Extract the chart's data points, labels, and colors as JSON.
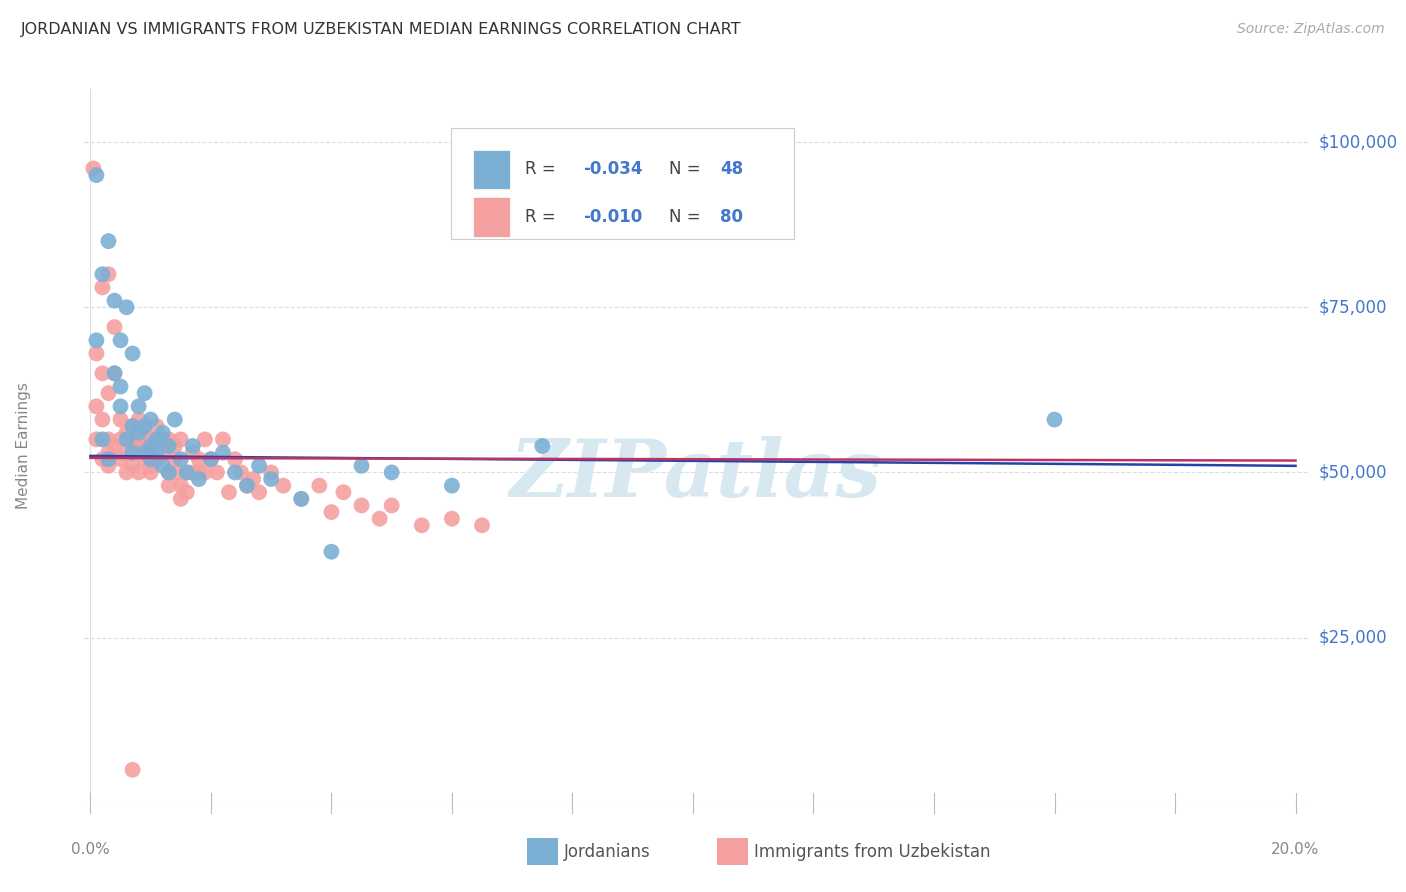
{
  "title": "JORDANIAN VS IMMIGRANTS FROM UZBEKISTAN MEDIAN EARNINGS CORRELATION CHART",
  "source": "Source: ZipAtlas.com",
  "ylabel": "Median Earnings",
  "y_tick_labels": [
    "$25,000",
    "$50,000",
    "$75,000",
    "$100,000"
  ],
  "y_tick_values": [
    25000,
    50000,
    75000,
    100000
  ],
  "r_jordanian": -0.034,
  "n_jordanian": 48,
  "r_uzbekistan": -0.01,
  "n_uzbekistan": 80,
  "blue_color": "#7BAFD4",
  "pink_color": "#F4A0A0",
  "line_color_blue": "#2244AA",
  "line_color_pink": "#BB3366",
  "title_color": "#333333",
  "axis_label_color": "#4477CC",
  "watermark_color": "#D8E8F0",
  "background_color": "#FFFFFF",
  "jordanians_x": [
    0.001,
    0.001,
    0.002,
    0.002,
    0.003,
    0.003,
    0.004,
    0.004,
    0.005,
    0.005,
    0.005,
    0.006,
    0.006,
    0.007,
    0.007,
    0.007,
    0.008,
    0.008,
    0.009,
    0.009,
    0.009,
    0.01,
    0.01,
    0.01,
    0.011,
    0.011,
    0.012,
    0.012,
    0.013,
    0.013,
    0.014,
    0.015,
    0.016,
    0.017,
    0.018,
    0.02,
    0.022,
    0.024,
    0.026,
    0.028,
    0.03,
    0.035,
    0.04,
    0.045,
    0.05,
    0.06,
    0.075,
    0.16
  ],
  "jordanians_y": [
    95000,
    70000,
    80000,
    55000,
    85000,
    52000,
    76000,
    65000,
    70000,
    63000,
    60000,
    75000,
    55000,
    68000,
    57000,
    53000,
    60000,
    56000,
    62000,
    57000,
    53000,
    58000,
    54000,
    52000,
    55000,
    53000,
    56000,
    51000,
    54000,
    50000,
    58000,
    52000,
    50000,
    54000,
    49000,
    52000,
    53000,
    50000,
    48000,
    51000,
    49000,
    46000,
    38000,
    51000,
    50000,
    48000,
    54000,
    58000
  ],
  "uzbekistan_x": [
    0.0005,
    0.001,
    0.001,
    0.001,
    0.002,
    0.002,
    0.002,
    0.003,
    0.003,
    0.003,
    0.004,
    0.004,
    0.004,
    0.005,
    0.005,
    0.005,
    0.006,
    0.006,
    0.006,
    0.007,
    0.007,
    0.007,
    0.008,
    0.008,
    0.008,
    0.008,
    0.009,
    0.009,
    0.009,
    0.01,
    0.01,
    0.01,
    0.01,
    0.011,
    0.011,
    0.011,
    0.012,
    0.012,
    0.013,
    0.013,
    0.013,
    0.014,
    0.014,
    0.014,
    0.015,
    0.015,
    0.015,
    0.016,
    0.016,
    0.017,
    0.017,
    0.018,
    0.018,
    0.019,
    0.019,
    0.02,
    0.021,
    0.022,
    0.023,
    0.024,
    0.025,
    0.026,
    0.027,
    0.028,
    0.03,
    0.032,
    0.035,
    0.038,
    0.04,
    0.042,
    0.045,
    0.048,
    0.05,
    0.055,
    0.06,
    0.065,
    0.003,
    0.002,
    0.003,
    0.007
  ],
  "uzbekistan_y": [
    96000,
    68000,
    60000,
    55000,
    65000,
    58000,
    52000,
    62000,
    55000,
    51000,
    72000,
    65000,
    54000,
    58000,
    55000,
    52000,
    56000,
    53000,
    50000,
    57000,
    54000,
    51000,
    55000,
    58000,
    54000,
    50000,
    55000,
    57000,
    52000,
    55000,
    53000,
    51000,
    50000,
    55000,
    57000,
    52000,
    55000,
    53000,
    55000,
    50000,
    48000,
    54000,
    52000,
    50000,
    55000,
    48000,
    46000,
    50000,
    47000,
    53000,
    50000,
    52000,
    50000,
    55000,
    50000,
    52000,
    50000,
    55000,
    47000,
    52000,
    50000,
    48000,
    49000,
    47000,
    50000,
    48000,
    46000,
    48000,
    44000,
    47000,
    45000,
    43000,
    45000,
    42000,
    43000,
    42000,
    80000,
    78000,
    53000,
    5000
  ]
}
